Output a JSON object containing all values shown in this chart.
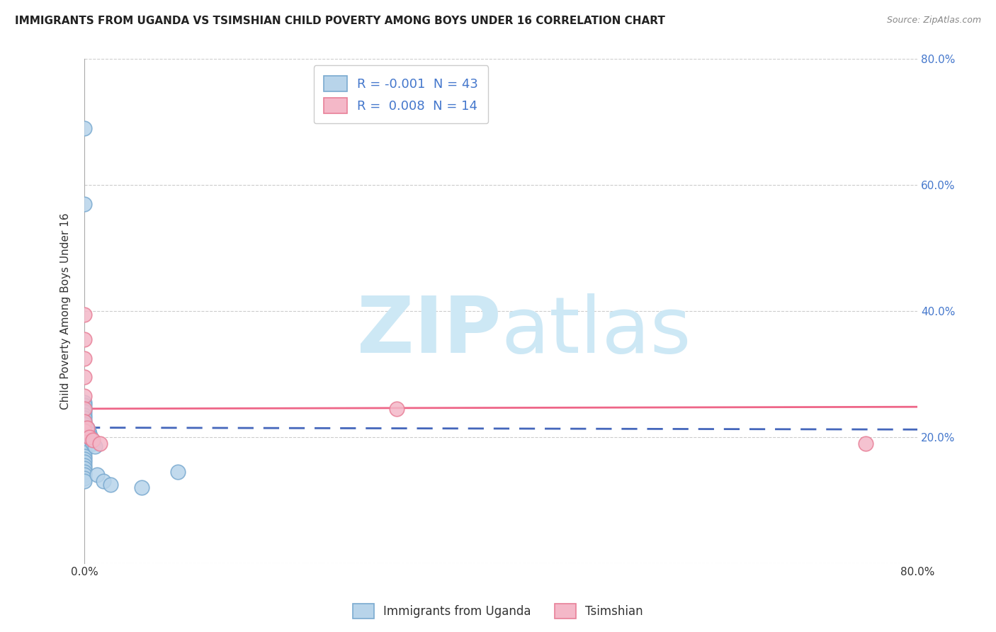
{
  "title": "IMMIGRANTS FROM UGANDA VS TSIMSHIAN CHILD POVERTY AMONG BOYS UNDER 16 CORRELATION CHART",
  "source": "Source: ZipAtlas.com",
  "ylabel": "Child Poverty Among Boys Under 16",
  "xlim": [
    0,
    0.8
  ],
  "ylim": [
    0,
    0.8
  ],
  "grid_color": "#cccccc",
  "background_color": "#ffffff",
  "blue_color": "#b8d4ea",
  "pink_color": "#f4b8c8",
  "blue_edge": "#7aaad0",
  "pink_edge": "#e88098",
  "trend_blue": "#4466bb",
  "trend_pink": "#ee6688",
  "legend_R_blue": "-0.001",
  "legend_N_blue": "43",
  "legend_R_pink": "0.008",
  "legend_N_pink": "14",
  "legend_text_color": "#4477cc",
  "label_blue": "Immigrants from Uganda",
  "label_pink": "Tsimshian",
  "blue_x": [
    0.0,
    0.0,
    0.0,
    0.0,
    0.0,
    0.0,
    0.0,
    0.0,
    0.0,
    0.0,
    0.0,
    0.0,
    0.0,
    0.0,
    0.0,
    0.0,
    0.0,
    0.0,
    0.0,
    0.0,
    0.0,
    0.0,
    0.0,
    0.0,
    0.0,
    0.0,
    0.0,
    0.0,
    0.0,
    0.0,
    0.0,
    0.003,
    0.004,
    0.005,
    0.006,
    0.007,
    0.008,
    0.01,
    0.012,
    0.018,
    0.025,
    0.055,
    0.09
  ],
  "blue_y": [
    0.69,
    0.57,
    0.255,
    0.25,
    0.245,
    0.24,
    0.235,
    0.23,
    0.225,
    0.22,
    0.22,
    0.215,
    0.21,
    0.21,
    0.205,
    0.2,
    0.2,
    0.195,
    0.19,
    0.185,
    0.18,
    0.175,
    0.17,
    0.165,
    0.16,
    0.155,
    0.15,
    0.145,
    0.14,
    0.135,
    0.13,
    0.215,
    0.21,
    0.205,
    0.2,
    0.195,
    0.19,
    0.185,
    0.14,
    0.13,
    0.125,
    0.12,
    0.145
  ],
  "pink_x": [
    0.0,
    0.0,
    0.0,
    0.0,
    0.0,
    0.0,
    0.0,
    0.0,
    0.003,
    0.005,
    0.008,
    0.015,
    0.3,
    0.75
  ],
  "pink_y": [
    0.395,
    0.355,
    0.325,
    0.295,
    0.265,
    0.245,
    0.225,
    0.21,
    0.215,
    0.2,
    0.195,
    0.19,
    0.245,
    0.19
  ],
  "trend_blue_y0": 0.215,
  "trend_blue_y1": 0.212,
  "trend_pink_y0": 0.245,
  "trend_pink_y1": 0.248,
  "watermark_color": "#cde8f5",
  "figsize": [
    14.06,
    8.92
  ],
  "dpi": 100
}
